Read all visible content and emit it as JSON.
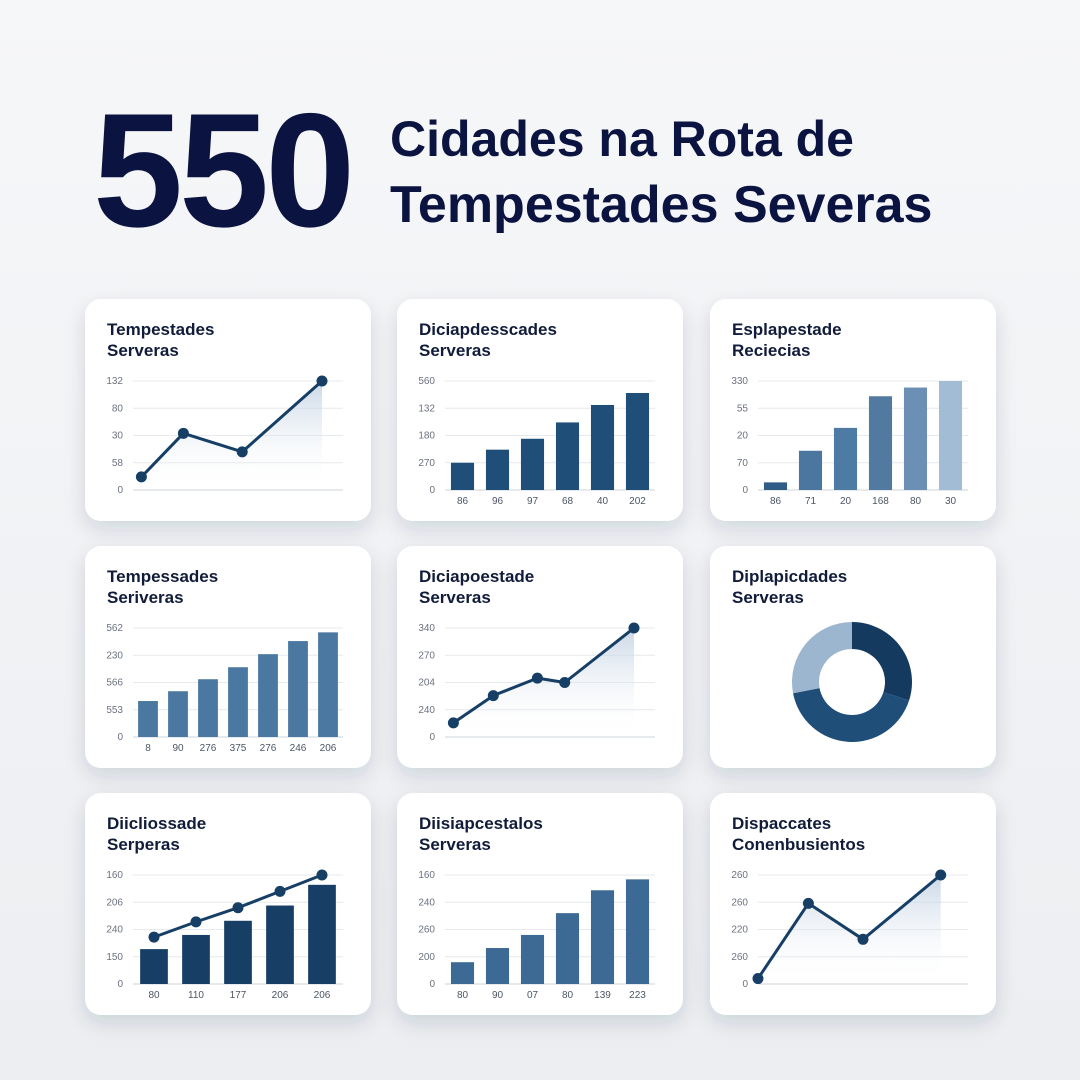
{
  "header": {
    "big_number": "550",
    "headline": [
      "Cidades na Rota de",
      "Tempestades Severas"
    ]
  },
  "chart_data": [
    {
      "type": "line",
      "title": [
        "Tempestades",
        "Serveras"
      ],
      "x": [
        4,
        24,
        52,
        90
      ],
      "xlim": [
        0,
        100
      ],
      "series": [
        {
          "color": "#173f66",
          "values": [
            12,
            52,
            35,
            100
          ]
        }
      ],
      "ylim": [
        0,
        100
      ],
      "yticks": [
        {
          "value": 100,
          "label": "132"
        },
        {
          "value": 75,
          "label": "80"
        },
        {
          "value": 50,
          "label": "30"
        },
        {
          "value": 25,
          "label": "58"
        },
        0
      ]
    },
    {
      "type": "bar",
      "title": [
        "Diciapdesscades",
        "Serveras"
      ],
      "categories": [
        "86",
        "96",
        "97",
        "68",
        "40",
        "202"
      ],
      "series": [
        {
          "color": "#1f4e79",
          "values": [
            25,
            37,
            47,
            62,
            78,
            89
          ]
        }
      ],
      "ylim": [
        0,
        100
      ],
      "yticks": [
        {
          "value": 100,
          "label": "560"
        },
        {
          "value": 75,
          "label": "132"
        },
        {
          "value": 50,
          "label": "180"
        },
        {
          "value": 25,
          "label": "270"
        },
        0
      ]
    },
    {
      "type": "bar",
      "title": [
        "Esplapestade",
        "Reciecias"
      ],
      "categories": [
        "86",
        "71",
        "20",
        "168",
        "80",
        "30"
      ],
      "series": [
        {
          "colors": [
            "#2f5d85",
            "#4a76a0",
            "#4d7ba3",
            "#52799f",
            "#6b8fb5",
            "#a2bcd6"
          ],
          "values": [
            7,
            36,
            57,
            86,
            94,
            100
          ]
        }
      ],
      "ylim": [
        0,
        100
      ],
      "yticks": [
        {
          "value": 100,
          "label": "330"
        },
        {
          "value": 75,
          "label": "55"
        },
        {
          "value": 50,
          "label": "20"
        },
        {
          "value": 25,
          "label": "70"
        },
        0
      ]
    },
    {
      "type": "bar",
      "title": [
        "Tempessades",
        "Seriveras"
      ],
      "categories": [
        "8",
        "90",
        "276",
        "375",
        "276",
        "246",
        "206"
      ],
      "series": [
        {
          "color": "#4a78a0",
          "values": [
            33,
            42,
            53,
            64,
            76,
            88,
            96
          ]
        }
      ],
      "ylim": [
        0,
        100
      ],
      "yticks": [
        {
          "value": 100,
          "label": "562"
        },
        {
          "value": 75,
          "label": "230"
        },
        {
          "value": 50,
          "label": "566"
        },
        {
          "value": 25,
          "label": "553"
        },
        0
      ]
    },
    {
      "type": "line",
      "title": [
        "Diciapoestade",
        "Serveras"
      ],
      "x": [
        4,
        23,
        44,
        57,
        90
      ],
      "xlim": [
        0,
        100
      ],
      "series": [
        {
          "color": "#173f66",
          "values": [
            13,
            38,
            54,
            50,
            100
          ]
        }
      ],
      "ylim": [
        0,
        100
      ],
      "yticks": [
        {
          "value": 100,
          "label": "340"
        },
        {
          "value": 75,
          "label": "270"
        },
        {
          "value": 50,
          "label": "204"
        },
        {
          "value": 25,
          "label": "240"
        },
        0
      ]
    },
    {
      "type": "donut",
      "title": [
        "Diplapicdades",
        "Serveras"
      ],
      "series": [
        {
          "colors": [
            "#153a60",
            "#1f4e79",
            "#9db6cf"
          ],
          "values": [
            30,
            42,
            28
          ]
        }
      ]
    },
    {
      "type": "bar",
      "title": [
        "Diicliossade",
        "Serperas"
      ],
      "categories": [
        "80",
        "110",
        "177",
        "206",
        "206"
      ],
      "series": [
        {
          "type": "bar",
          "color": "#173f66",
          "values": [
            32,
            45,
            58,
            72,
            91
          ]
        },
        {
          "type": "line",
          "color": "#173f66",
          "values": [
            43,
            57,
            70,
            85,
            100
          ]
        }
      ],
      "ylim": [
        0,
        100
      ],
      "yticks": [
        {
          "value": 100,
          "label": "160"
        },
        {
          "value": 75,
          "label": "206"
        },
        {
          "value": 50,
          "label": "240"
        },
        {
          "value": 25,
          "label": "150"
        },
        0
      ]
    },
    {
      "type": "bar",
      "title": [
        "Diisiapcestalos",
        "Serveras"
      ],
      "categories": [
        "80",
        "90",
        "07",
        "80",
        "139",
        "223"
      ],
      "series": [
        {
          "color": "#3c6a94",
          "values": [
            20,
            33,
            45,
            65,
            86,
            96
          ]
        }
      ],
      "ylim": [
        0,
        100
      ],
      "yticks": [
        {
          "value": 100,
          "label": "160"
        },
        {
          "value": 75,
          "label": "240"
        },
        {
          "value": 50,
          "label": "260"
        },
        {
          "value": 25,
          "label": "200"
        },
        0
      ]
    },
    {
      "type": "line",
      "title": [
        "Dispaccates",
        "Conenbusientos"
      ],
      "x": [
        0,
        24,
        50,
        87
      ],
      "xlim": [
        0,
        100
      ],
      "series": [
        {
          "color": "#173f66",
          "values": [
            5,
            74,
            41,
            100
          ]
        }
      ],
      "ylim": [
        0,
        100
      ],
      "yticks": [
        {
          "value": 100,
          "label": "260"
        },
        {
          "value": 75,
          "label": "260"
        },
        {
          "value": 50,
          "label": "220"
        },
        {
          "value": 25,
          "label": "260"
        },
        0
      ]
    }
  ]
}
